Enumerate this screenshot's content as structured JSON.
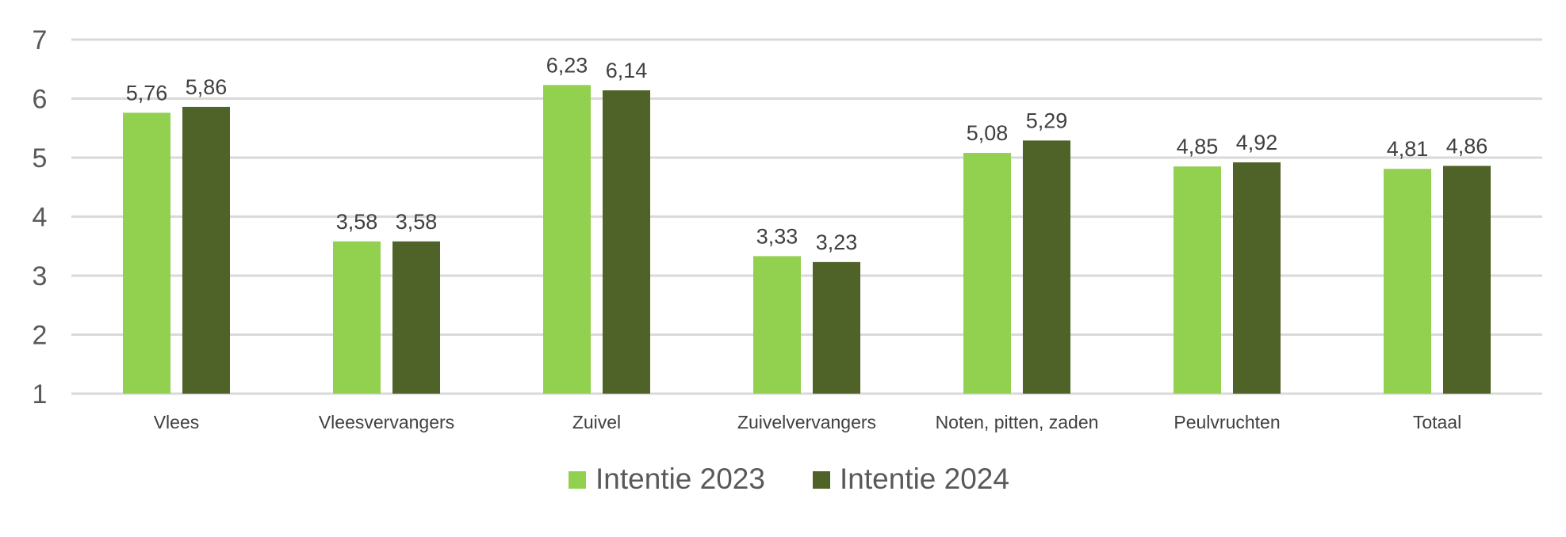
{
  "chart_data": {
    "type": "bar",
    "categories": [
      "Vlees",
      "Vleesvervangers",
      "Zuivel",
      "Zuivelvervangers",
      "Noten, pitten, zaden",
      "Peulvruchten",
      "Totaal"
    ],
    "series": [
      {
        "name": "Intentie 2023",
        "color": "#92d050",
        "values": [
          5.76,
          3.58,
          6.23,
          3.33,
          5.08,
          4.85,
          4.81
        ],
        "labels": [
          "5,76",
          "3,58",
          "6,23",
          "3,33",
          "5,08",
          "4,85",
          "4,81"
        ]
      },
      {
        "name": "Intentie 2024",
        "color": "#4f6228",
        "values": [
          5.86,
          3.58,
          6.14,
          3.23,
          5.29,
          4.92,
          4.86
        ],
        "labels": [
          "5,86",
          "3,58",
          "6,14",
          "3,23",
          "5,29",
          "4,92",
          "4,86"
        ]
      }
    ],
    "ylim": [
      1,
      7
    ],
    "yticks": [
      1,
      2,
      3,
      4,
      5,
      6,
      7
    ],
    "grid": true,
    "legend_position": "bottom",
    "title": "",
    "xlabel": "",
    "ylabel": ""
  }
}
